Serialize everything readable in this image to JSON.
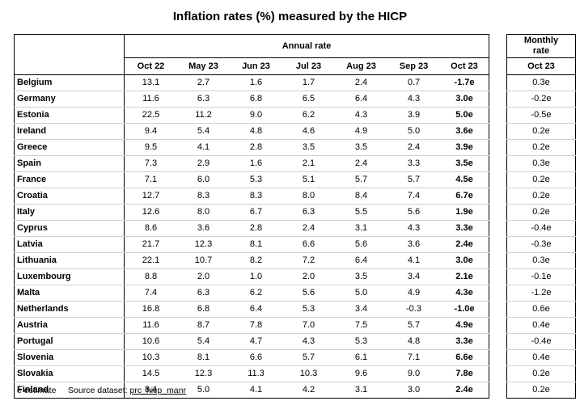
{
  "title": "Inflation rates (%) measured by the HICP",
  "annual_header": "Annual rate",
  "monthly_header_line1": "Monthly",
  "monthly_header_line2": "rate",
  "columns": [
    "Oct 22",
    "May 23",
    "Jun 23",
    "Jul 23",
    "Aug 23",
    "Sep 23",
    "Oct 23"
  ],
  "monthly_column": "Oct 23",
  "rows": [
    {
      "country": "Belgium",
      "values": [
        "13.1",
        "2.7",
        "1.6",
        "1.7",
        "2.4",
        "0.7",
        "-1.7e"
      ],
      "monthly": "0.3e"
    },
    {
      "country": "Germany",
      "values": [
        "11.6",
        "6.3",
        "6.8",
        "6.5",
        "6.4",
        "4.3",
        "3.0e"
      ],
      "monthly": "-0.2e"
    },
    {
      "country": "Estonia",
      "values": [
        "22.5",
        "11.2",
        "9.0",
        "6.2",
        "4.3",
        "3.9",
        "5.0e"
      ],
      "monthly": "-0.5e"
    },
    {
      "country": "Ireland",
      "values": [
        "9.4",
        "5.4",
        "4.8",
        "4.6",
        "4.9",
        "5.0",
        "3.6e"
      ],
      "monthly": "0.2e"
    },
    {
      "country": "Greece",
      "values": [
        "9.5",
        "4.1",
        "2.8",
        "3.5",
        "3.5",
        "2.4",
        "3.9e"
      ],
      "monthly": "0.2e"
    },
    {
      "country": "Spain",
      "values": [
        "7.3",
        "2.9",
        "1.6",
        "2.1",
        "2.4",
        "3.3",
        "3.5e"
      ],
      "monthly": "0.3e"
    },
    {
      "country": "France",
      "values": [
        "7.1",
        "6.0",
        "5.3",
        "5.1",
        "5.7",
        "5.7",
        "4.5e"
      ],
      "monthly": "0.2e"
    },
    {
      "country": "Croatia",
      "values": [
        "12.7",
        "8.3",
        "8.3",
        "8.0",
        "8.4",
        "7.4",
        "6.7e"
      ],
      "monthly": "0.2e"
    },
    {
      "country": "Italy",
      "values": [
        "12.6",
        "8.0",
        "6.7",
        "6.3",
        "5.5",
        "5.6",
        "1.9e"
      ],
      "monthly": "0.2e"
    },
    {
      "country": "Cyprus",
      "values": [
        "8.6",
        "3.6",
        "2.8",
        "2.4",
        "3.1",
        "4.3",
        "3.3e"
      ],
      "monthly": "-0.4e"
    },
    {
      "country": "Latvia",
      "values": [
        "21.7",
        "12.3",
        "8.1",
        "6.6",
        "5.6",
        "3.6",
        "2.4e"
      ],
      "monthly": "-0.3e"
    },
    {
      "country": "Lithuania",
      "values": [
        "22.1",
        "10.7",
        "8.2",
        "7.2",
        "6.4",
        "4.1",
        "3.0e"
      ],
      "monthly": "0.3e"
    },
    {
      "country": "Luxembourg",
      "values": [
        "8.8",
        "2.0",
        "1.0",
        "2.0",
        "3.5",
        "3.4",
        "2.1e"
      ],
      "monthly": "-0.1e"
    },
    {
      "country": "Malta",
      "values": [
        "7.4",
        "6.3",
        "6.2",
        "5.6",
        "5.0",
        "4.9",
        "4.3e"
      ],
      "monthly": "-1.2e"
    },
    {
      "country": "Netherlands",
      "values": [
        "16.8",
        "6.8",
        "6.4",
        "5.3",
        "3.4",
        "-0.3",
        "-1.0e"
      ],
      "monthly": "0.6e"
    },
    {
      "country": "Austria",
      "values": [
        "11.6",
        "8.7",
        "7.8",
        "7.0",
        "7.5",
        "5.7",
        "4.9e"
      ],
      "monthly": "0.4e"
    },
    {
      "country": "Portugal",
      "values": [
        "10.6",
        "5.4",
        "4.7",
        "4.3",
        "5.3",
        "4.8",
        "3.3e"
      ],
      "monthly": "-0.4e"
    },
    {
      "country": "Slovenia",
      "values": [
        "10.3",
        "8.1",
        "6.6",
        "5.7",
        "6.1",
        "7.1",
        "6.6e"
      ],
      "monthly": "0.4e"
    },
    {
      "country": "Slovakia",
      "values": [
        "14.5",
        "12.3",
        "11.3",
        "10.3",
        "9.6",
        "9.0",
        "7.8e"
      ],
      "monthly": "0.2e"
    },
    {
      "country": "Finland",
      "values": [
        "8.4",
        "5.0",
        "4.1",
        "4.2",
        "3.1",
        "3.0",
        "2.4e"
      ],
      "monthly": "0.2e"
    }
  ],
  "footnote": {
    "estimate": "e estimate",
    "source_label": "Source dataset:",
    "dataset": "prc_hicp_manr"
  }
}
